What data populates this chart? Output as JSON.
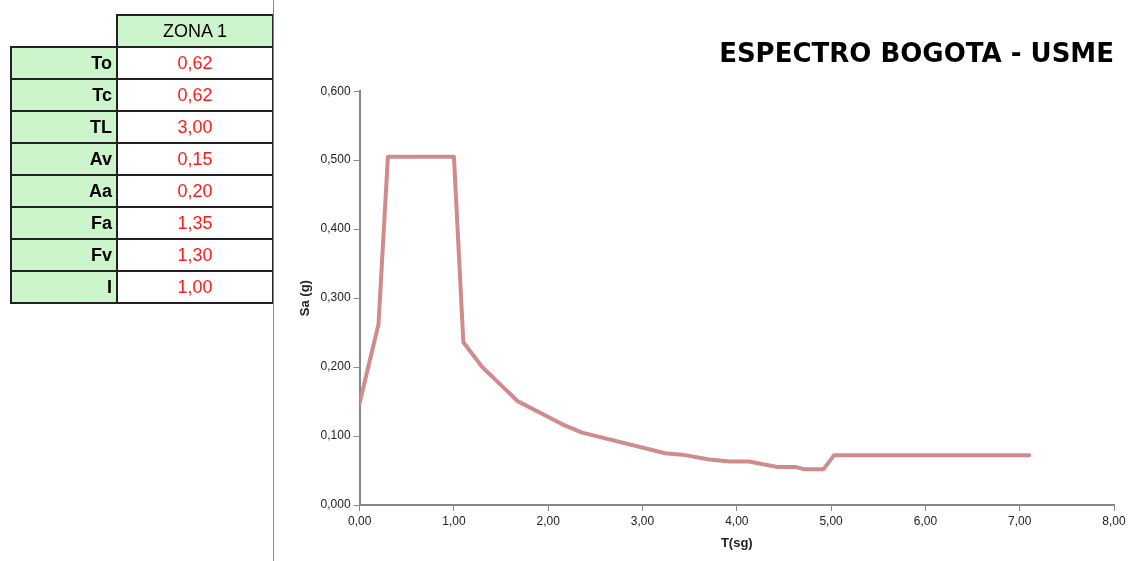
{
  "chart_data": [
    {
      "type": "other",
      "title": "ZONA 1",
      "categories": [
        "To",
        "Tc",
        "TL",
        "Av",
        "Aa",
        "Fa",
        "Fv",
        "I"
      ],
      "value_labels": [
        "0,62",
        "0,62",
        "3,00",
        "0,15",
        "0,20",
        "1,35",
        "1,30",
        "1,00"
      ]
    },
    {
      "type": "line",
      "title": "ESPECTRO BOGOTA - USME",
      "xlabel": "T(sg)",
      "ylabel": "Sa (g)",
      "series": [
        {
          "color": "#d08c8c",
          "x": [
            0,
            0.2,
            0.3,
            1.0,
            1.1,
            1.3,
            1.59,
            1.67,
            2.15,
            2.36,
            3.24,
            3.42,
            3.71,
            3.92,
            4.13,
            4.43,
            4.63,
            4.71,
            4.92,
            5.03,
            7.1
          ],
          "values": [
            0.148,
            0.262,
            0.505,
            0.505,
            0.236,
            0.2,
            0.162,
            0.151,
            0.117,
            0.105,
            0.075,
            0.073,
            0.066,
            0.063,
            0.063,
            0.055,
            0.055,
            0.052,
            0.052,
            0.072,
            0.072
          ]
        }
      ],
      "xlim": [
        0,
        8
      ],
      "xticks": [
        {
          "value": 0,
          "label": "0,00"
        },
        {
          "value": 1,
          "label": "1,00"
        },
        {
          "value": 2,
          "label": "2,00"
        },
        {
          "value": 3,
          "label": "3,00"
        },
        {
          "value": 4,
          "label": "4,00"
        },
        {
          "value": 5,
          "label": "5,00"
        },
        {
          "value": 6,
          "label": "6,00"
        },
        {
          "value": 7,
          "label": "7,00"
        },
        {
          "value": 8,
          "label": "8,00"
        }
      ],
      "ylim": [
        0,
        0.6
      ],
      "yticks": [
        {
          "value": 0,
          "label": "0,000"
        },
        {
          "value": 0.1,
          "label": "0,100"
        },
        {
          "value": 0.2,
          "label": "0,200"
        },
        {
          "value": 0.3,
          "label": "0,300"
        },
        {
          "value": 0.4,
          "label": "0,400"
        },
        {
          "value": 0.5,
          "label": "0,500"
        },
        {
          "value": 0.6,
          "label": "0,600"
        }
      ],
      "grid": false,
      "legend": false,
      "marker": "none",
      "line_style": "solid"
    }
  ]
}
